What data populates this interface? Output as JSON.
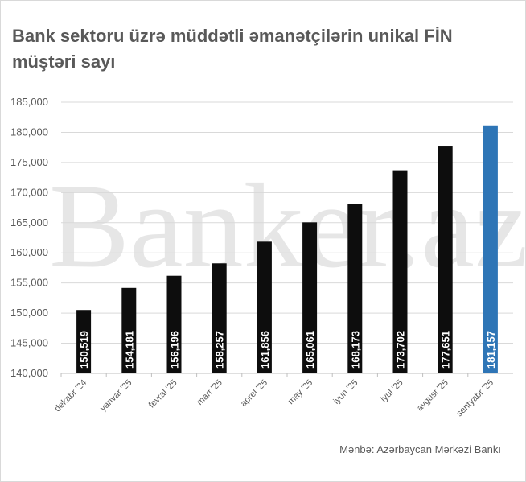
{
  "title": "Bank sektoru üzrə müddətli əmanətçilərin unikal FİN müştəri sayı",
  "source": "Mənbə: Azərbaycan Mərkəzi Bankı",
  "watermark": "Banker.az",
  "chart_data": {
    "type": "bar",
    "title": "Bank sektoru üzrə müddətli əmanətçilərin unikal FİN müştəri sayı",
    "categories": [
      "dekabr '24",
      "yanvar '25",
      "fevral '25",
      "mart '25",
      "aprel '25",
      "may '25",
      "iyun '25",
      "iyul '25",
      "avgust '25",
      "sentyabr '25"
    ],
    "values": [
      150519,
      154181,
      156196,
      158257,
      161856,
      165061,
      168173,
      173702,
      177651,
      181157
    ],
    "data_labels": [
      "150,519",
      "154,181",
      "156,196",
      "158,257",
      "161,856",
      "165,061",
      "168,173",
      "173,702",
      "177,651",
      "181,157"
    ],
    "ylim": [
      140000,
      185000
    ],
    "yticks": [
      "140,000",
      "145,000",
      "150,000",
      "155,000",
      "160,000",
      "165,000",
      "170,000",
      "175,000",
      "180,000",
      "185,000"
    ],
    "grid": true,
    "colors": {
      "default": "#0d0d0d",
      "highlight": "#2e75b6"
    },
    "highlight_index": 9
  }
}
